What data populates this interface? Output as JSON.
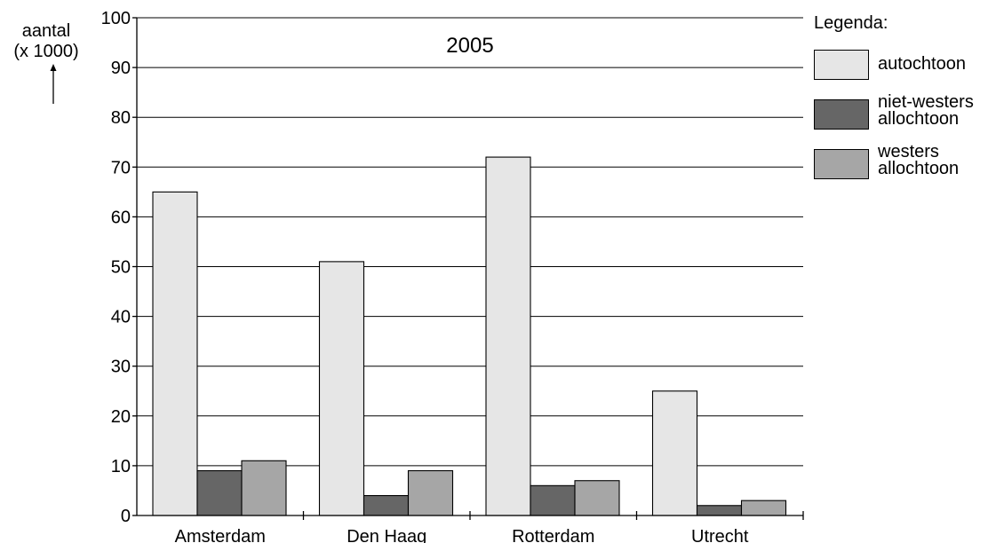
{
  "chart_data": {
    "type": "bar",
    "title": "2005",
    "ylabel": "aantal\n(x 1000)",
    "xlabel": "",
    "categories": [
      "Amsterdam",
      "Den Haag",
      "Rotterdam",
      "Utrecht"
    ],
    "series": [
      {
        "name": "autochtoon",
        "values": [
          65,
          51,
          72,
          25
        ],
        "color": "#e6e6e6"
      },
      {
        "name": "niet-westers\nallochtoon",
        "values": [
          9,
          4,
          6,
          2
        ],
        "color": "#666666"
      },
      {
        "name": "westers\nallochtoon",
        "values": [
          11,
          9,
          7,
          3
        ],
        "color": "#a6a6a6"
      }
    ],
    "ylim": [
      0,
      100
    ],
    "yticks": [
      0,
      10,
      20,
      30,
      40,
      50,
      60,
      70,
      80,
      90,
      100
    ],
    "grid": true,
    "legend_title": "Legenda:",
    "legend_placement": "right"
  }
}
